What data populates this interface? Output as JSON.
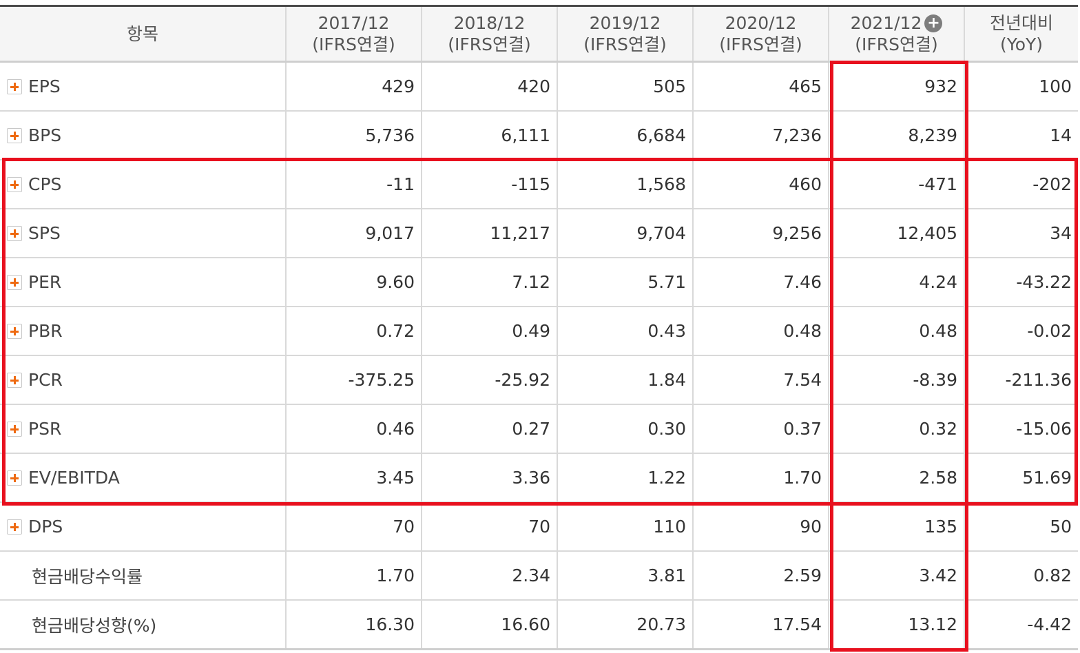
{
  "header": {
    "item": "항목",
    "columns": [
      {
        "period": "2017/12",
        "basis": "(IFRS연결)"
      },
      {
        "period": "2018/12",
        "basis": "(IFRS연결)"
      },
      {
        "period": "2019/12",
        "basis": "(IFRS연결)"
      },
      {
        "period": "2020/12",
        "basis": "(IFRS연결)"
      },
      {
        "period": "2021/12",
        "basis": "(IFRS연결)"
      },
      {
        "period": "전년대비",
        "basis": "(YoY)"
      }
    ]
  },
  "rows": [
    {
      "label": "EPS",
      "expandable": true,
      "values": [
        "429",
        "420",
        "505",
        "465",
        "932",
        "100"
      ]
    },
    {
      "label": "BPS",
      "expandable": true,
      "values": [
        "5,736",
        "6,111",
        "6,684",
        "7,236",
        "8,239",
        "14"
      ]
    },
    {
      "label": "CPS",
      "expandable": true,
      "values": [
        "-11",
        "-115",
        "1,568",
        "460",
        "-471",
        "-202"
      ]
    },
    {
      "label": "SPS",
      "expandable": true,
      "values": [
        "9,017",
        "11,217",
        "9,704",
        "9,256",
        "12,405",
        "34"
      ]
    },
    {
      "label": "PER",
      "expandable": true,
      "values": [
        "9.60",
        "7.12",
        "5.71",
        "7.46",
        "4.24",
        "-43.22"
      ]
    },
    {
      "label": "PBR",
      "expandable": true,
      "values": [
        "0.72",
        "0.49",
        "0.43",
        "0.48",
        "0.48",
        "-0.02"
      ]
    },
    {
      "label": "PCR",
      "expandable": true,
      "values": [
        "-375.25",
        "-25.92",
        "1.84",
        "7.54",
        "-8.39",
        "-211.36"
      ]
    },
    {
      "label": "PSR",
      "expandable": true,
      "values": [
        "0.46",
        "0.27",
        "0.30",
        "0.37",
        "0.32",
        "-15.06"
      ]
    },
    {
      "label": "EV/EBITDA",
      "expandable": true,
      "values": [
        "3.45",
        "3.36",
        "1.22",
        "1.70",
        "2.58",
        "51.69"
      ]
    },
    {
      "label": "DPS",
      "expandable": true,
      "values": [
        "70",
        "70",
        "110",
        "90",
        "135",
        "50"
      ]
    },
    {
      "label": "현금배당수익률",
      "expandable": false,
      "values": [
        "1.70",
        "2.34",
        "3.81",
        "2.59",
        "3.42",
        "0.82"
      ]
    },
    {
      "label": "현금배당성향(%)",
      "expandable": false,
      "values": [
        "16.30",
        "16.60",
        "20.73",
        "17.54",
        "13.12",
        "-4.42"
      ]
    }
  ],
  "colors": {
    "negative_text": "#b20000",
    "highlight_box": "#e8101e",
    "expand_icon": "#ee6a11"
  }
}
